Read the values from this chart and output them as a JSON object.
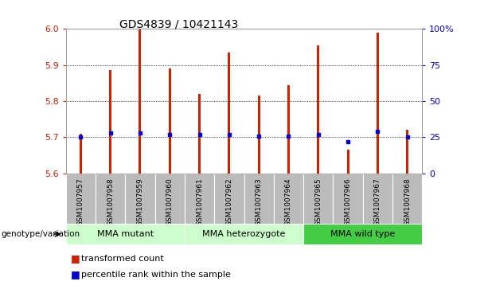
{
  "title": "GDS4839 / 10421143",
  "samples": [
    "GSM1007957",
    "GSM1007958",
    "GSM1007959",
    "GSM1007960",
    "GSM1007961",
    "GSM1007962",
    "GSM1007963",
    "GSM1007964",
    "GSM1007965",
    "GSM1007966",
    "GSM1007967",
    "GSM1007968"
  ],
  "transformed_counts": [
    5.71,
    5.885,
    6.0,
    5.89,
    5.82,
    5.935,
    5.815,
    5.845,
    5.955,
    5.665,
    5.99,
    5.72
  ],
  "percentile_ranks": [
    25,
    28,
    28,
    27,
    27,
    27,
    26,
    26,
    27,
    22,
    29,
    25
  ],
  "ymin": 5.6,
  "ymax": 6.0,
  "yticks": [
    5.6,
    5.7,
    5.8,
    5.9,
    6.0
  ],
  "right_yticks": [
    0,
    25,
    50,
    75,
    100
  ],
  "right_yticklabels": [
    "0",
    "25",
    "50",
    "75",
    "100%"
  ],
  "bar_color": "#cc2200",
  "dot_color": "#0000cc",
  "grid_color": "#000000",
  "left_tick_color": "#cc2200",
  "right_tick_color": "#0000cc",
  "groups": [
    {
      "label": "MMA mutant",
      "start": 0,
      "end": 3,
      "color": "#ccffcc"
    },
    {
      "label": "MMA heterozygote",
      "start": 4,
      "end": 7,
      "color": "#ccffcc"
    },
    {
      "label": "MMA wild type",
      "start": 8,
      "end": 11,
      "color": "#44cc44"
    }
  ],
  "group_label": "genotype/variation",
  "legend_items": [
    {
      "label": "transformed count",
      "color": "#cc2200"
    },
    {
      "label": "percentile rank within the sample",
      "color": "#0000cc"
    }
  ],
  "bar_width": 0.08,
  "sample_col_bg": "#bbbbbb",
  "title_fontsize": 10,
  "tick_fontsize": 8,
  "group_fontsize": 8,
  "label_fontsize": 6.5,
  "legend_fontsize": 8
}
